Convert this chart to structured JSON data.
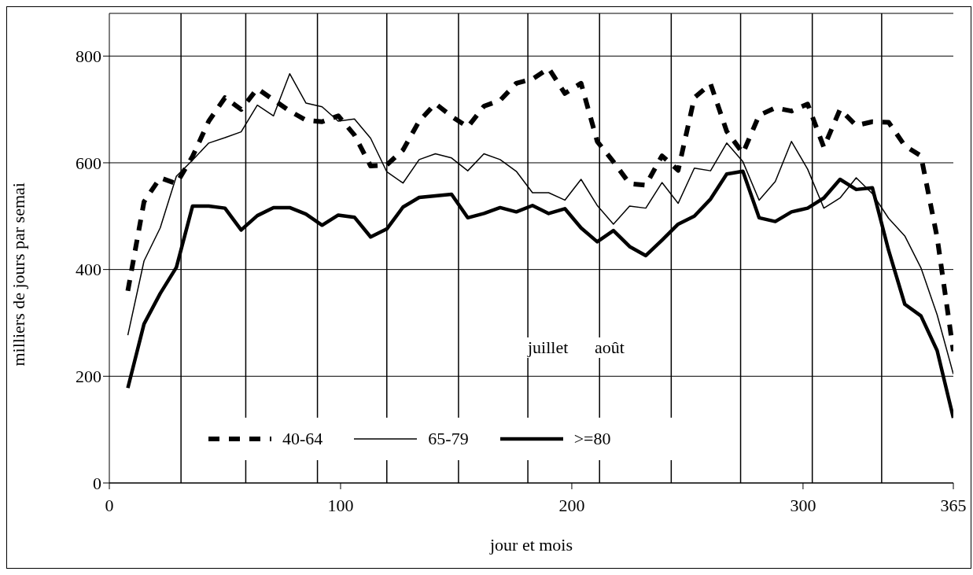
{
  "chart_data": {
    "type": "line",
    "xlabel": "jour et mois",
    "ylabel": "milliers de jours par semai",
    "x": [
      8,
      15,
      22,
      29,
      36,
      43,
      50,
      57,
      64,
      71,
      78,
      85,
      92,
      99,
      106,
      113,
      120,
      127,
      134,
      141,
      148,
      155,
      162,
      169,
      176,
      183,
      190,
      197,
      204,
      211,
      218,
      225,
      232,
      239,
      246,
      253,
      260,
      267,
      274,
      281,
      288,
      295,
      302,
      309,
      316,
      323,
      330,
      337,
      344,
      351,
      358,
      365
    ],
    "series": [
      {
        "name": "40-64",
        "color": "#000000",
        "line_style": "dashed",
        "values": [
          360,
          527,
          572,
          561,
          612,
          678,
          722,
          700,
          739,
          718,
          697,
          680,
          677,
          688,
          652,
          594,
          596,
          624,
          678,
          711,
          687,
          667,
          706,
          717,
          749,
          757,
          777,
          730,
          749,
          640,
          602,
          561,
          558,
          613,
          586,
          722,
          748,
          659,
          618,
          689,
          703,
          697,
          710,
          629,
          700,
          670,
          677,
          676,
          632,
          613,
          460,
          247
        ]
      },
      {
        "name": "65-79",
        "color": "#000000",
        "line_style": "solid",
        "values": [
          277,
          416,
          478,
          575,
          605,
          637,
          647,
          658,
          708,
          688,
          767,
          712,
          705,
          678,
          682,
          646,
          583,
          562,
          606,
          617,
          609,
          585,
          617,
          606,
          584,
          544,
          544,
          530,
          569,
          520,
          485,
          519,
          515,
          563,
          524,
          590,
          585,
          637,
          602,
          530,
          565,
          640,
          588,
          515,
          534,
          572,
          542,
          496,
          463,
          403,
          315,
          204
        ]
      },
      {
        "name": ">=80",
        "color": "#000000",
        "line_style": "solid",
        "values": [
          178,
          298,
          355,
          404,
          519,
          519,
          515,
          474,
          501,
          516,
          516,
          504,
          483,
          502,
          498,
          461,
          476,
          517,
          535,
          538,
          541,
          497,
          505,
          516,
          508,
          520,
          505,
          514,
          478,
          452,
          473,
          443,
          426,
          455,
          485,
          500,
          532,
          579,
          584,
          497,
          490,
          508,
          515,
          534,
          569,
          550,
          553,
          436,
          335,
          313,
          248,
          122
        ]
      }
    ],
    "xlim": [
      0,
      365
    ],
    "xticks": [
      0,
      100,
      200,
      300,
      365
    ],
    "ylim": [
      0,
      880
    ],
    "yticks": [
      0,
      200,
      400,
      600,
      800
    ],
    "grid": "y",
    "legend": "bottom",
    "marker": "none",
    "ref_lines": [
      {
        "axis": "x",
        "value": 31,
        "label": null
      },
      {
        "axis": "x",
        "value": 59,
        "label": null
      },
      {
        "axis": "x",
        "value": 90,
        "label": null
      },
      {
        "axis": "x",
        "value": 120,
        "label": null
      },
      {
        "axis": "x",
        "value": 151,
        "label": null
      },
      {
        "axis": "x",
        "value": 181,
        "label": null
      },
      {
        "axis": "x",
        "value": 212,
        "label": null
      },
      {
        "axis": "x",
        "value": 243,
        "label": null
      },
      {
        "axis": "x",
        "value": 273,
        "label": null
      },
      {
        "axis": "x",
        "value": 304,
        "label": null
      },
      {
        "axis": "x",
        "value": 334,
        "label": null
      }
    ],
    "annotations": [
      "juillet",
      "août"
    ]
  }
}
